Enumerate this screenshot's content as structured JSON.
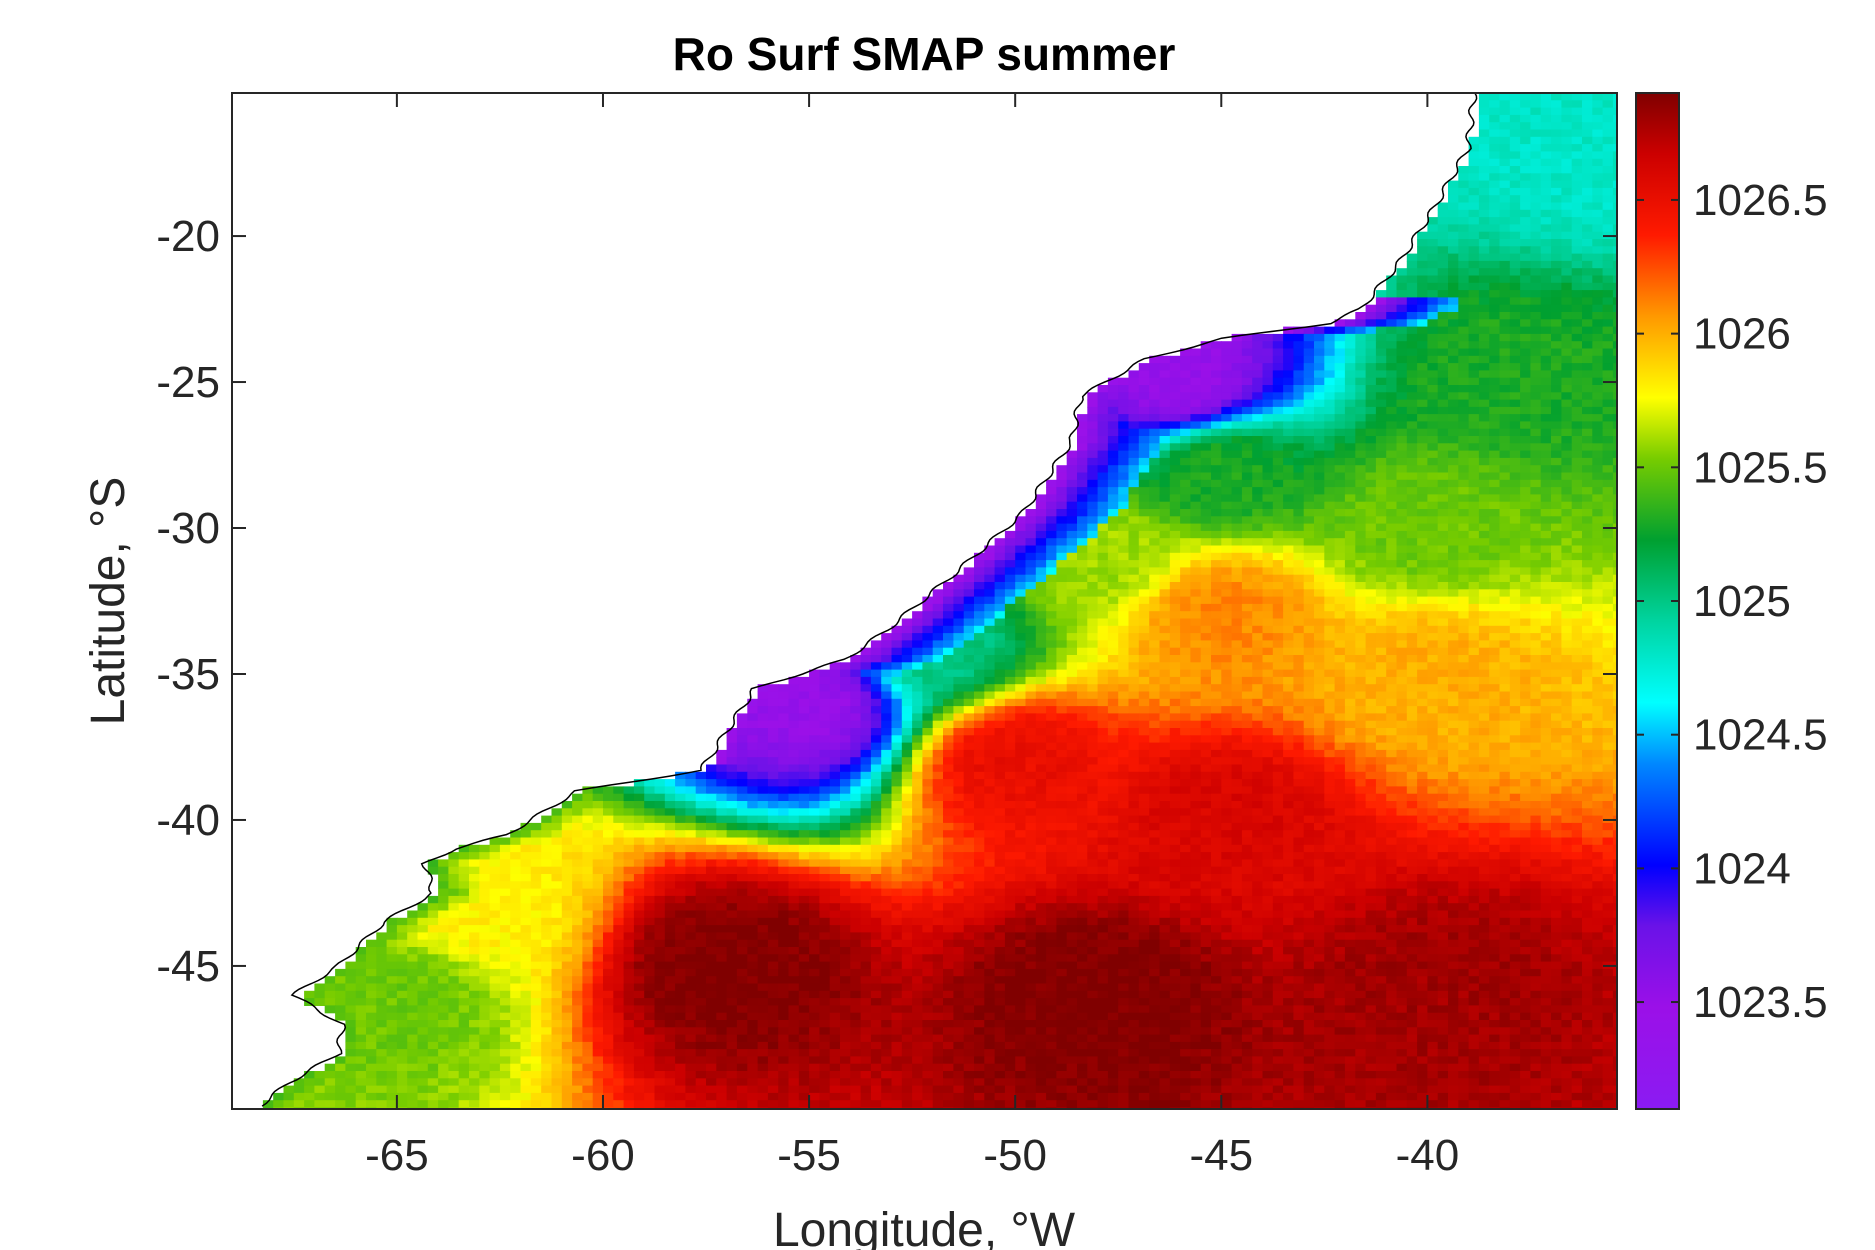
{
  "chart_data": {
    "type": "heatmap",
    "title": "Ro Surf SMAP summer",
    "xlabel": "Longitude, °W",
    "ylabel": "Latitude, °S",
    "xlim": [
      -69,
      -35.4
    ],
    "ylim": [
      -49.9,
      -15.1
    ],
    "xticks": [
      -65,
      -60,
      -55,
      -50,
      -45,
      -40
    ],
    "yticks": [
      -20,
      -25,
      -30,
      -35,
      -40,
      -45
    ],
    "colorbar": {
      "ticks": [
        1023.5,
        1024,
        1024.5,
        1025,
        1025.5,
        1026,
        1026.5
      ],
      "range": [
        1023.1,
        1026.9
      ],
      "colormap": "jet-like (violet-blue-cyan-green-yellow-red-dark red)",
      "colors": [
        "#8b1bf2",
        "#3b00dd",
        "#0000ff",
        "#00aaff",
        "#00ffff",
        "#00e0a0",
        "#00a030",
        "#7bd000",
        "#ffff00",
        "#ff9900",
        "#ff1a00",
        "#800000"
      ]
    },
    "field_description_points": [
      {
        "lon": -36,
        "lat": -17,
        "value": 1024.8
      },
      {
        "lon": -38,
        "lat": -25,
        "value": 1025.3
      },
      {
        "lon": -40,
        "lat": -30,
        "value": 1025.5
      },
      {
        "lon": -45,
        "lat": -28,
        "value": 1025.3
      },
      {
        "lon": -45,
        "lat": -33,
        "value": 1026.1
      },
      {
        "lon": -48,
        "lat": -31,
        "value": 1025.6
      },
      {
        "lon": -46,
        "lat": -25,
        "value": 1023.5
      },
      {
        "lon": -55,
        "lat": -36,
        "value": 1023.5
      },
      {
        "lon": -52,
        "lat": -34,
        "value": 1025.0
      },
      {
        "lon": -50,
        "lat": -38,
        "value": 1026.5
      },
      {
        "lon": -45,
        "lat": -40,
        "value": 1026.6
      },
      {
        "lon": -40,
        "lat": -35,
        "value": 1026.0
      },
      {
        "lon": -57,
        "lat": -45,
        "value": 1026.9
      },
      {
        "lon": -48,
        "lat": -46,
        "value": 1026.9
      },
      {
        "lon": -40,
        "lat": -46,
        "value": 1026.8
      },
      {
        "lon": -63,
        "lat": -43,
        "value": 1025.8
      },
      {
        "lon": -65,
        "lat": -46,
        "value": 1025.5
      }
    ]
  }
}
